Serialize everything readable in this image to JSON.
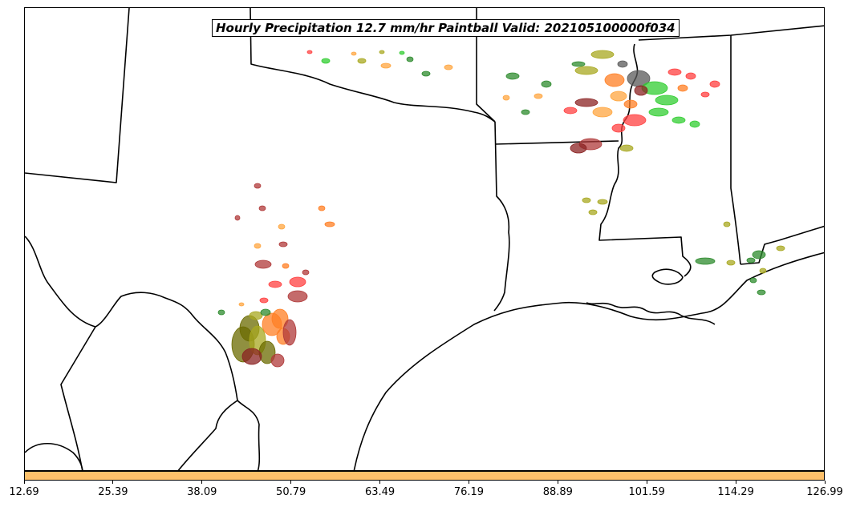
{
  "title": "Hourly Precipitation 12.7 mm/hr Paintball Valid: 202105100000f034",
  "colorbar": {
    "color": "#FDC06A",
    "ticks": [
      "12.69",
      "25.39",
      "38.09",
      "50.79",
      "63.49",
      "76.19",
      "88.89",
      "101.59",
      "114.29",
      "126.99"
    ]
  },
  "member_colors": [
    "#8B2323",
    "#FF4040",
    "#FF7F24",
    "#6B6B00",
    "#A8A820",
    "#2E8B2E",
    "#32CD32",
    "#5A5A5A",
    "#FFA640",
    "#B03A3A"
  ]
}
